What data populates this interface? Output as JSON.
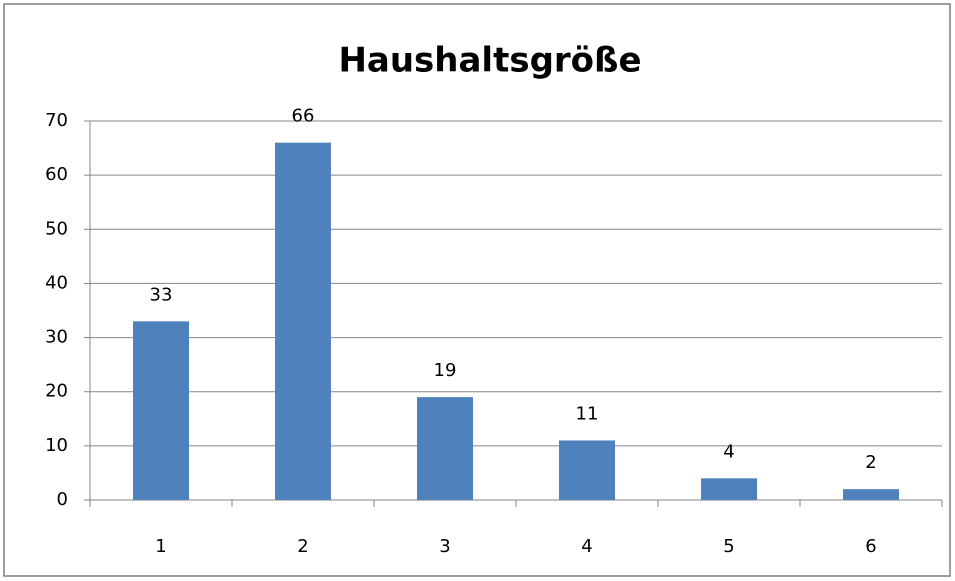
{
  "chart_data": {
    "type": "bar",
    "title": "Haushaltsgröße",
    "categories": [
      "1",
      "2",
      "3",
      "4",
      "5",
      "6"
    ],
    "values": [
      33,
      66,
      19,
      11,
      4,
      2
    ],
    "color": "#4f81bd",
    "ylim": [
      0,
      70
    ],
    "yticks": [
      0,
      10,
      20,
      30,
      40,
      50,
      60,
      70
    ],
    "grid": true
  }
}
